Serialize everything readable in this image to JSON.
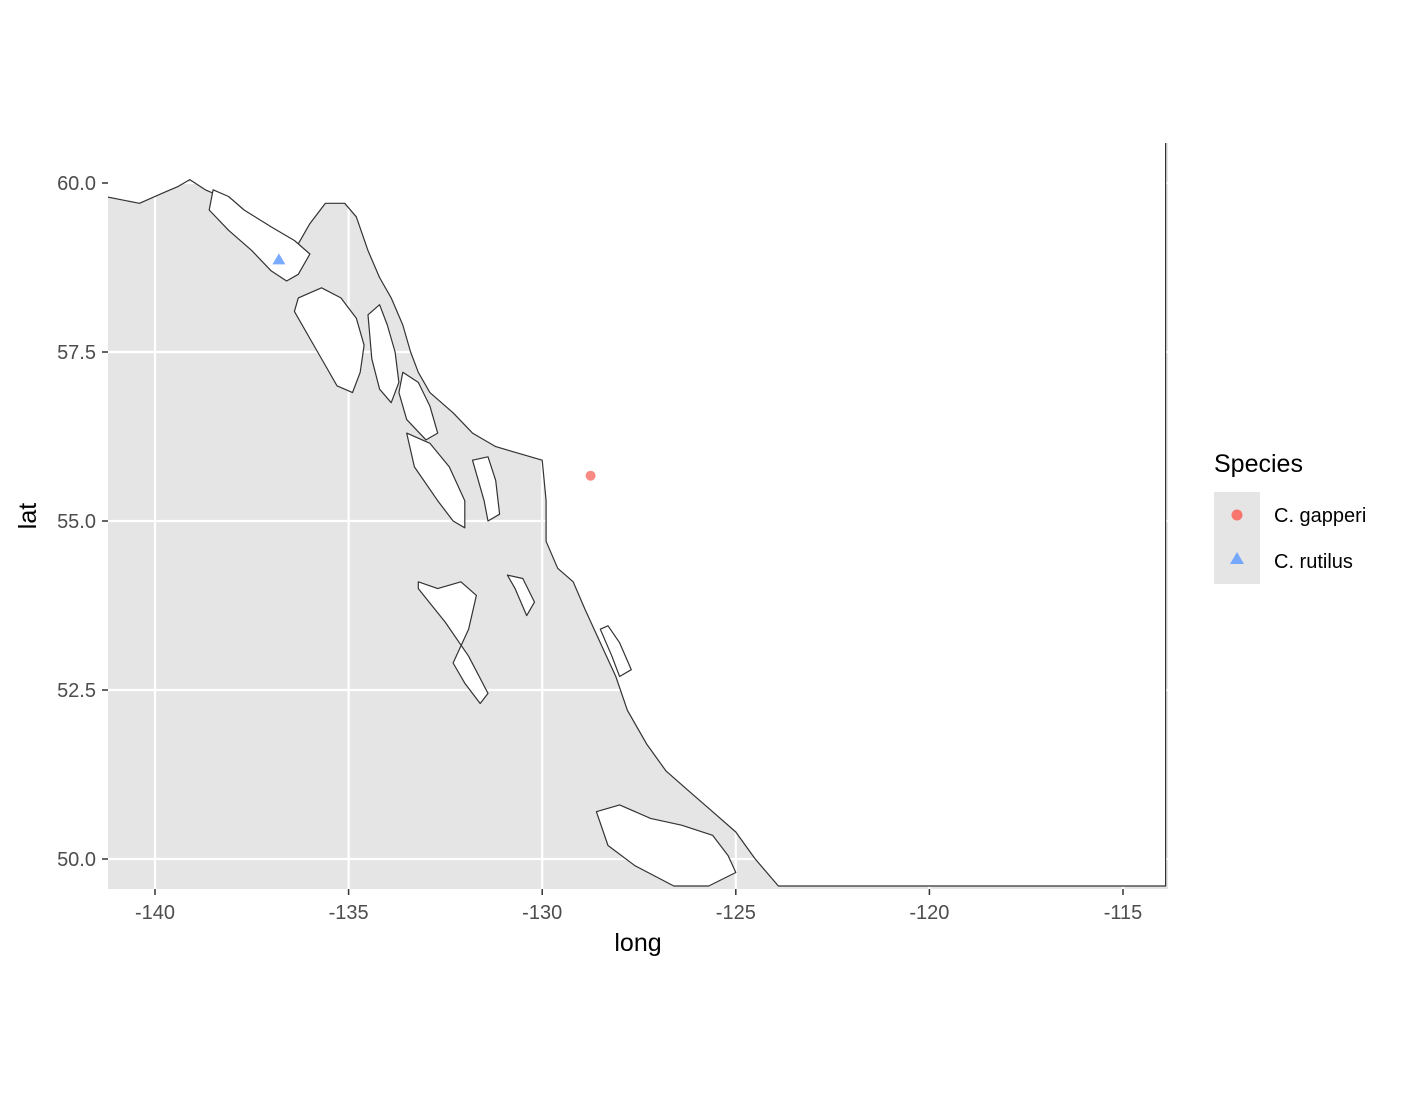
{
  "chart_data": {
    "type": "scatter",
    "title": "",
    "xlabel": "long",
    "ylabel": "lat",
    "xlim": [
      -141.3,
      -113.9
    ],
    "ylim": [
      49.6,
      60.6
    ],
    "x_ticks": [
      -140,
      -135,
      -130,
      -125,
      -120,
      -115
    ],
    "x_tick_labels": [
      "-140",
      "-135",
      "-130",
      "-125",
      "-120",
      "-115"
    ],
    "y_ticks": [
      50.0,
      52.5,
      55.0,
      57.5,
      60.0
    ],
    "y_tick_labels": [
      "50.0",
      "52.5",
      "55.0",
      "57.5",
      "60.0"
    ],
    "grid": true,
    "panel_background": "#e5e5e5",
    "grid_color": "#ffffff",
    "legend": {
      "title": "Species",
      "position": "right",
      "entries": [
        {
          "label": "C. gapperi",
          "shape": "circle",
          "color": "#F8766D"
        },
        {
          "label": "C. rutilus",
          "shape": "triangle",
          "color": "#619CFF"
        }
      ]
    },
    "series": [
      {
        "name": "C. gapperi",
        "shape": "circle",
        "color": "#F8766D",
        "points": [
          {
            "x": -128.75,
            "y": 55.67
          }
        ]
      },
      {
        "name": "C. rutilus",
        "shape": "triangle",
        "color": "#619CFF",
        "points": [
          {
            "x": -136.8,
            "y": 58.87
          }
        ]
      }
    ],
    "basemap": {
      "mainland": [
        [
          -141.3,
          60.6
        ],
        [
          -141.3,
          59.8
        ],
        [
          -140.4,
          59.7
        ],
        [
          -139.8,
          59.85
        ],
        [
          -139.4,
          59.95
        ],
        [
          -139.1,
          60.05
        ],
        [
          -138.7,
          59.9
        ],
        [
          -138.3,
          59.8
        ],
        [
          -137.9,
          59.6
        ],
        [
          -137.5,
          59.4
        ],
        [
          -137.2,
          59.2
        ],
        [
          -136.95,
          59.05
        ],
        [
          -136.7,
          59.0
        ],
        [
          -136.3,
          59.1
        ],
        [
          -136.0,
          59.4
        ],
        [
          -135.6,
          59.7
        ],
        [
          -135.1,
          59.7
        ],
        [
          -134.8,
          59.5
        ],
        [
          -134.5,
          59.0
        ],
        [
          -134.2,
          58.6
        ],
        [
          -133.9,
          58.3
        ],
        [
          -133.6,
          57.9
        ],
        [
          -133.4,
          57.5
        ],
        [
          -133.2,
          57.2
        ],
        [
          -132.9,
          56.9
        ],
        [
          -132.3,
          56.6
        ],
        [
          -131.8,
          56.3
        ],
        [
          -131.2,
          56.1
        ],
        [
          -130.6,
          56.0
        ],
        [
          -130.0,
          55.9
        ],
        [
          -129.9,
          55.3
        ],
        [
          -129.9,
          54.7
        ],
        [
          -129.6,
          54.3
        ],
        [
          -129.2,
          54.1
        ],
        [
          -128.9,
          53.7
        ],
        [
          -128.5,
          53.2
        ],
        [
          -128.1,
          52.7
        ],
        [
          -127.8,
          52.2
        ],
        [
          -127.3,
          51.7
        ],
        [
          -126.8,
          51.3
        ],
        [
          -126.2,
          51.0
        ],
        [
          -125.6,
          50.7
        ],
        [
          -125.0,
          50.4
        ],
        [
          -124.5,
          50.0
        ],
        [
          -123.9,
          49.6
        ],
        [
          -113.9,
          49.6
        ],
        [
          -113.9,
          60.6
        ]
      ],
      "islands": [
        [
          [
            -138.5,
            59.9
          ],
          [
            -138.6,
            59.6
          ],
          [
            -138.1,
            59.3
          ],
          [
            -137.5,
            59.0
          ],
          [
            -137.0,
            58.7
          ],
          [
            -136.6,
            58.55
          ],
          [
            -136.3,
            58.65
          ],
          [
            -136.0,
            58.95
          ],
          [
            -136.4,
            59.15
          ],
          [
            -137.0,
            59.35
          ],
          [
            -137.7,
            59.6
          ],
          [
            -138.1,
            59.8
          ]
        ],
        [
          [
            -136.3,
            58.3
          ],
          [
            -136.4,
            58.1
          ],
          [
            -136.0,
            57.7
          ],
          [
            -135.6,
            57.3
          ],
          [
            -135.3,
            57.0
          ],
          [
            -134.9,
            56.9
          ],
          [
            -134.7,
            57.2
          ],
          [
            -134.6,
            57.6
          ],
          [
            -134.8,
            58.0
          ],
          [
            -135.2,
            58.3
          ],
          [
            -135.7,
            58.45
          ]
        ],
        [
          [
            -134.5,
            58.05
          ],
          [
            -134.4,
            57.4
          ],
          [
            -134.2,
            56.95
          ],
          [
            -133.9,
            56.75
          ],
          [
            -133.7,
            57.05
          ],
          [
            -133.8,
            57.5
          ],
          [
            -134.0,
            57.9
          ],
          [
            -134.2,
            58.2
          ]
        ],
        [
          [
            -133.6,
            57.2
          ],
          [
            -133.7,
            56.9
          ],
          [
            -133.5,
            56.5
          ],
          [
            -133.0,
            56.2
          ],
          [
            -132.7,
            56.3
          ],
          [
            -132.9,
            56.7
          ],
          [
            -133.2,
            57.05
          ]
        ],
        [
          [
            -133.5,
            56.3
          ],
          [
            -133.3,
            55.8
          ],
          [
            -132.7,
            55.3
          ],
          [
            -132.3,
            55.0
          ],
          [
            -132.0,
            54.9
          ],
          [
            -132.0,
            55.3
          ],
          [
            -132.4,
            55.8
          ],
          [
            -132.9,
            56.15
          ]
        ],
        [
          [
            -131.8,
            55.9
          ],
          [
            -131.5,
            55.3
          ],
          [
            -131.4,
            55.0
          ],
          [
            -131.1,
            55.1
          ],
          [
            -131.2,
            55.6
          ],
          [
            -131.4,
            55.95
          ]
        ],
        [
          [
            -133.2,
            54.1
          ],
          [
            -132.7,
            54.0
          ],
          [
            -132.1,
            54.1
          ],
          [
            -131.7,
            53.9
          ],
          [
            -131.9,
            53.4
          ],
          [
            -132.3,
            52.9
          ],
          [
            -132.0,
            52.6
          ],
          [
            -131.6,
            52.3
          ],
          [
            -131.4,
            52.45
          ],
          [
            -131.9,
            53.0
          ],
          [
            -132.5,
            53.5
          ],
          [
            -133.2,
            54.0
          ]
        ],
        [
          [
            -128.6,
            50.7
          ],
          [
            -128.0,
            50.8
          ],
          [
            -127.2,
            50.6
          ],
          [
            -126.4,
            50.5
          ],
          [
            -125.6,
            50.35
          ],
          [
            -125.2,
            50.05
          ],
          [
            -125.0,
            49.8
          ],
          [
            -125.7,
            49.6
          ],
          [
            -126.6,
            49.6
          ],
          [
            -127.6,
            49.9
          ],
          [
            -128.3,
            50.2
          ]
        ],
        [
          [
            -128.5,
            53.4
          ],
          [
            -128.2,
            53.0
          ],
          [
            -128.0,
            52.7
          ],
          [
            -127.7,
            52.8
          ],
          [
            -128.0,
            53.2
          ],
          [
            -128.3,
            53.45
          ]
        ],
        [
          [
            -130.9,
            54.2
          ],
          [
            -130.7,
            54.0
          ],
          [
            -130.4,
            53.6
          ],
          [
            -130.2,
            53.8
          ],
          [
            -130.5,
            54.15
          ]
        ]
      ]
    }
  }
}
